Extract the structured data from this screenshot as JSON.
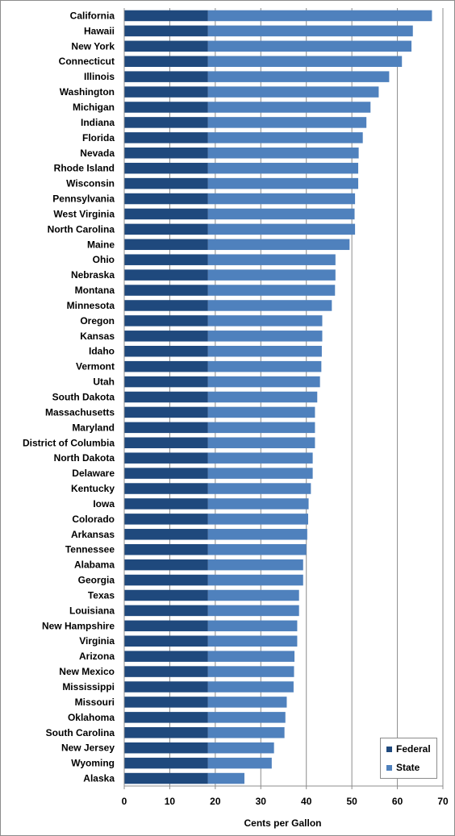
{
  "chart_data": {
    "type": "bar",
    "orientation": "horizontal",
    "stacked": true,
    "categories": [
      "California",
      "Hawaii",
      "New York",
      "Connecticut",
      "Illinois",
      "Washington",
      "Michigan",
      "Indiana",
      "Florida",
      "Nevada",
      "Rhode Island",
      "Wisconsin",
      "Pennsylvania",
      "West Virginia",
      "North Carolina",
      "Maine",
      "Ohio",
      "Nebraska",
      "Montana",
      "Minnesota",
      "Oregon",
      "Kansas",
      "Idaho",
      "Vermont",
      "Utah",
      "South Dakota",
      "Massachusetts",
      "Maryland",
      "District of Columbia",
      "North Dakota",
      "Delaware",
      "Kentucky",
      "Iowa",
      "Colorado",
      "Arkansas",
      "Tennessee",
      "Alabama",
      "Georgia",
      "Texas",
      "Louisiana",
      "New Hampshire",
      "Virginia",
      "Arizona",
      "New Mexico",
      "Mississippi",
      "Missouri",
      "Oklahoma",
      "South Carolina",
      "New Jersey",
      "Wyoming",
      "Alaska"
    ],
    "series": [
      {
        "name": "Federal",
        "color": "#1f497d",
        "values": [
          18.4,
          18.4,
          18.4,
          18.4,
          18.4,
          18.4,
          18.4,
          18.4,
          18.4,
          18.4,
          18.4,
          18.4,
          18.4,
          18.4,
          18.4,
          18.4,
          18.4,
          18.4,
          18.4,
          18.4,
          18.4,
          18.4,
          18.4,
          18.4,
          18.4,
          18.4,
          18.4,
          18.4,
          18.4,
          18.4,
          18.4,
          18.4,
          18.4,
          18.4,
          18.4,
          18.4,
          18.4,
          18.4,
          18.4,
          18.4,
          18.4,
          18.4,
          18.4,
          18.4,
          18.4,
          18.4,
          18.4,
          18.4,
          18.4,
          18.4,
          18.4
        ]
      },
      {
        "name": "State",
        "color": "#4f81bd",
        "values": [
          49.2,
          45.0,
          44.7,
          42.6,
          39.8,
          37.5,
          35.7,
          34.8,
          34.0,
          33.1,
          33.0,
          33.0,
          32.3,
          32.2,
          32.3,
          31.1,
          28.0,
          28.0,
          27.9,
          27.2,
          25.1,
          25.1,
          25.0,
          24.9,
          24.6,
          24.0,
          23.5,
          23.5,
          23.5,
          23.0,
          23.0,
          22.6,
          22.1,
          22.0,
          21.8,
          21.6,
          20.9,
          20.9,
          20.0,
          20.0,
          19.6,
          19.6,
          19.0,
          18.9,
          18.8,
          17.3,
          17.0,
          16.8,
          14.5,
          14.0,
          8.0
        ]
      }
    ],
    "xlabel": "Cents per Gallon",
    "xlim": [
      0,
      70
    ],
    "xticks": [
      0,
      10,
      20,
      30,
      40,
      50,
      60,
      70
    ],
    "grid": "vertical",
    "legend_position": "bottom-right"
  },
  "legend": {
    "federal_label": "Federal",
    "state_label": "State"
  }
}
